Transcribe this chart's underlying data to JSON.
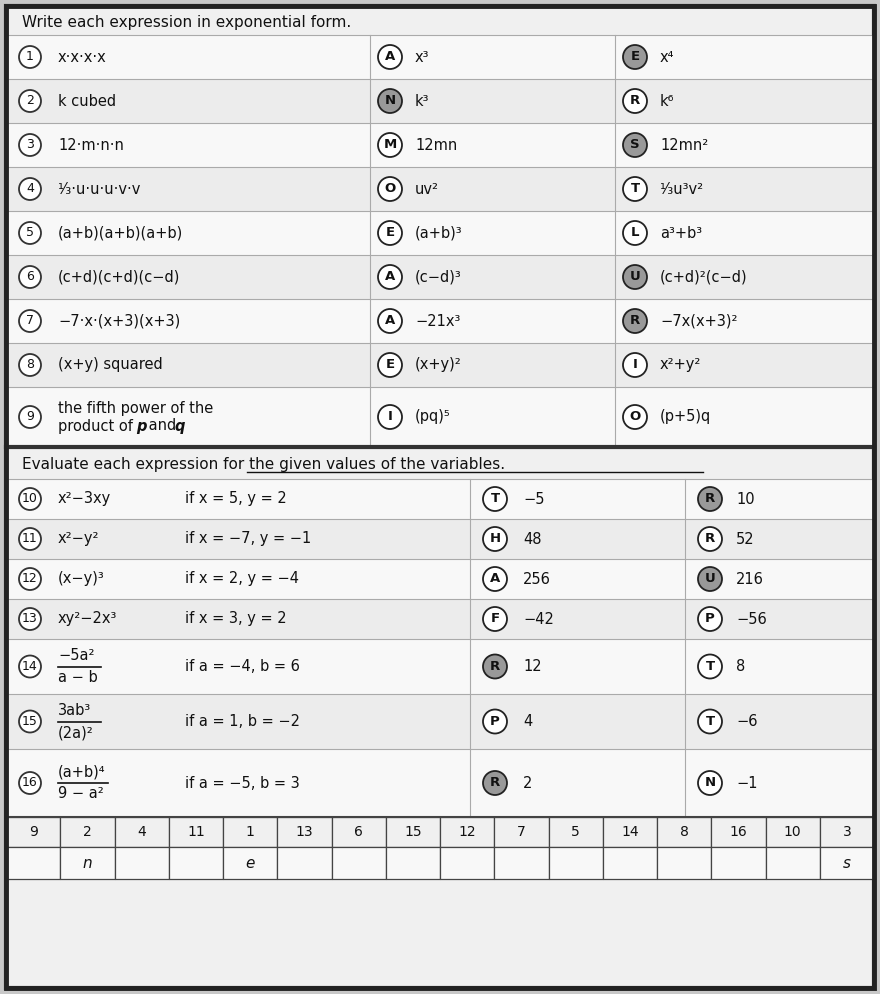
{
  "title": "Write each expression in exponential form.",
  "title2": "Evaluate each expression for the given values of the variables.",
  "bg_outer": "#c8c8c8",
  "bg_inner": "#e8e8e8",
  "section1_rows": [
    {
      "num": "1",
      "question": "x·x·x·x",
      "circle1_letter": "A",
      "answer1": "x³",
      "circle2_letter": "E",
      "answer2": "x⁴",
      "c1_filled": false,
      "c2_filled": true
    },
    {
      "num": "2",
      "question": "k cubed",
      "circle1_letter": "N",
      "answer1": "k³",
      "circle2_letter": "R",
      "answer2": "k⁶",
      "c1_filled": true,
      "c2_filled": false
    },
    {
      "num": "3",
      "question": "12·m·n·n",
      "circle1_letter": "M",
      "answer1": "12mn",
      "circle2_letter": "S",
      "answer2": "12mn²",
      "c1_filled": false,
      "c2_filled": true
    },
    {
      "num": "4",
      "question": "¹⁄₃·u·u·u·v·v",
      "circle1_letter": "O",
      "answer1": "uv²",
      "circle2_letter": "T",
      "answer2": "¹⁄₃u³v²",
      "c1_filled": false,
      "c2_filled": false
    },
    {
      "num": "5",
      "question": "(a+b)(a+b)(a+b)",
      "circle1_letter": "E",
      "answer1": "(a+b)³",
      "circle2_letter": "L",
      "answer2": "a³+b³",
      "c1_filled": false,
      "c2_filled": false
    },
    {
      "num": "6",
      "question": "(c+d)(c+d)(c−d)",
      "circle1_letter": "A",
      "answer1": "(c−d)³",
      "circle2_letter": "U",
      "answer2": "(c+d)²(c−d)",
      "c1_filled": false,
      "c2_filled": true
    },
    {
      "num": "7",
      "question": "−7·x·(x+3)(x+3)",
      "circle1_letter": "A",
      "answer1": "−21x³",
      "circle2_letter": "R",
      "answer2": "−7x(x+3)²",
      "c1_filled": false,
      "c2_filled": true
    },
    {
      "num": "8",
      "question": "(x+y) squared",
      "circle1_letter": "E",
      "answer1": "(x+y)²",
      "circle2_letter": "I",
      "answer2": "x²+y²",
      "c1_filled": false,
      "c2_filled": false
    },
    {
      "num": "9",
      "question_line1": "the fifth power of the",
      "question_line2": "product of p and q",
      "circle1_letter": "I",
      "answer1": "(pq)⁵",
      "circle2_letter": "O",
      "answer2": "(p+5)q",
      "c1_filled": false,
      "c2_filled": false,
      "two_line": true
    }
  ],
  "section2_rows": [
    {
      "num": "10",
      "question": "x²−3xy",
      "condition": "if x = 5, y = 2",
      "circle1_letter": "T",
      "answer1": "−5",
      "circle2_letter": "R",
      "answer2": "10",
      "c1_filled": false,
      "c2_filled": true
    },
    {
      "num": "11",
      "question": "x²−y²",
      "condition": "if x = −7, y = −1",
      "circle1_letter": "H",
      "answer1": "48",
      "circle2_letter": "R",
      "answer2": "52",
      "c1_filled": false,
      "c2_filled": false
    },
    {
      "num": "12",
      "question": "(x−y)³",
      "condition": "if x = 2, y = −4",
      "circle1_letter": "A",
      "answer1": "256",
      "circle2_letter": "U",
      "answer2": "216",
      "c1_filled": false,
      "c2_filled": true
    },
    {
      "num": "13",
      "question": "xy²−2x³",
      "condition": "if x = 3, y = 2",
      "circle1_letter": "F",
      "answer1": "−42",
      "circle2_letter": "P",
      "answer2": "−56",
      "c1_filled": false,
      "c2_filled": false
    },
    {
      "num": "14",
      "frac_num": "−5a²",
      "frac_den": "a − b",
      "condition": "if a = −4, b = 6",
      "circle1_letter": "R",
      "answer1": "12",
      "circle2_letter": "T",
      "answer2": "8",
      "c1_filled": true,
      "c2_filled": false,
      "is_frac": true
    },
    {
      "num": "15",
      "frac_num": "3ab³",
      "frac_den": "(2a)²",
      "condition": "if a = 1, b = −2",
      "circle1_letter": "P",
      "answer1": "4",
      "circle2_letter": "T",
      "answer2": "−6",
      "c1_filled": false,
      "c2_filled": false,
      "is_frac": true
    },
    {
      "num": "16",
      "frac_num": "(a+b)⁴",
      "frac_den": "9 − a²",
      "condition": "if a = −5, b = 3",
      "circle1_letter": "R",
      "answer1": "2",
      "circle2_letter": "N",
      "answer2": "−1",
      "c1_filled": true,
      "c2_filled": false,
      "is_frac": true
    }
  ],
  "bottom_nums": [
    "9",
    "2",
    "4",
    "11",
    "1",
    "13",
    "6",
    "15",
    "12",
    "7",
    "5",
    "14",
    "8",
    "16",
    "10",
    "3"
  ],
  "bottom_ltrs": [
    "",
    "n",
    "",
    "",
    "e",
    "",
    "",
    "",
    "",
    "",
    "",
    "",
    "",
    "",
    "",
    "s"
  ]
}
